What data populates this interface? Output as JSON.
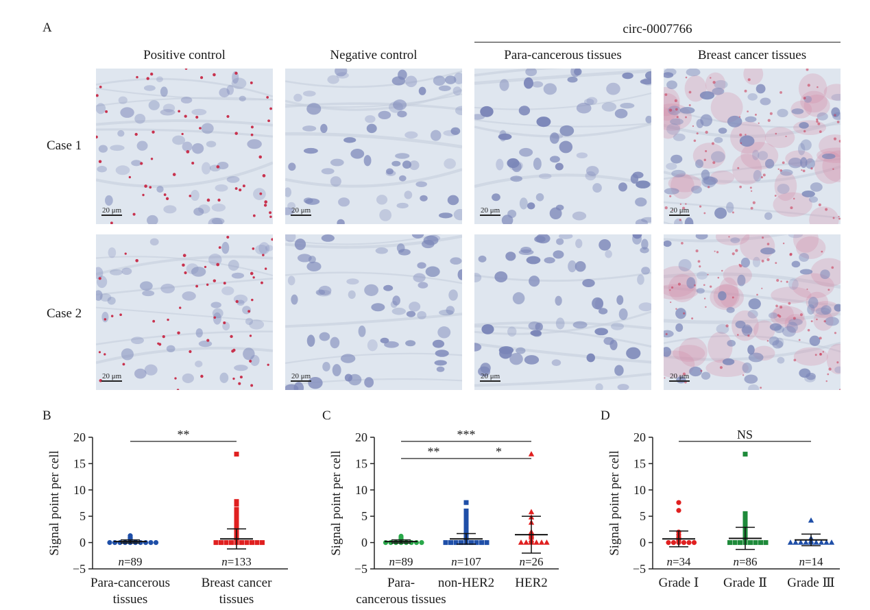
{
  "panel_a": {
    "label": "A",
    "group_label": "circ-0007766",
    "columns": [
      "Positive control",
      "Negative control",
      "Para-cancerous tissues",
      "Breast cancer tissues"
    ],
    "rows": [
      "Case 1",
      "Case 2"
    ],
    "scale_bar": "20 μm",
    "stain_colors": {
      "background": "#dfe6ef",
      "nucleus": "#7b86b8",
      "signal": "#c8324e",
      "diffuse": "#d48aa6"
    }
  },
  "chart_data": [
    {
      "panel": "B",
      "type": "scatter",
      "ylabel": "Signal point per cell",
      "ylim": [
        -5,
        20
      ],
      "yticks": [
        -5,
        0,
        5,
        10,
        15,
        20
      ],
      "categories": [
        "Para-cancerous\ntissues",
        "Breast cancer\ntissues"
      ],
      "n_labels": [
        "n=89",
        "n=133"
      ],
      "series": [
        {
          "color": "#1f4fa8",
          "marker": "circle",
          "mean": 0.2,
          "sd": 0.3,
          "values": [
            1.3,
            1.0,
            0.9,
            0.8,
            0.7,
            0.6,
            0.5,
            0.4,
            0.3,
            0.2,
            0.1,
            0.1,
            0.0,
            0.0,
            0.0,
            0.0,
            0.0,
            0.0,
            0.0,
            0.0,
            0.0,
            0.0
          ]
        },
        {
          "color": "#e02020",
          "marker": "square",
          "mean": 0.7,
          "sd": 1.9,
          "values": [
            16.8,
            7.8,
            7.3,
            6.3,
            5.8,
            5.0,
            4.6,
            4.2,
            3.8,
            3.5,
            3.1,
            2.9,
            2.6,
            2.3,
            2.1,
            1.9,
            1.7,
            1.5,
            1.3,
            1.2,
            1.0,
            0.9,
            0.8,
            0.7,
            0.6,
            0.5,
            0.4,
            0.3,
            0.2,
            0.1,
            0.0,
            0.0,
            0.0,
            0.0,
            0.0,
            0.0,
            0.0,
            0.0,
            0.0,
            0.0
          ]
        }
      ],
      "significance": [
        {
          "from": 0,
          "to": 1,
          "level": 0,
          "label": "**"
        }
      ]
    },
    {
      "panel": "C",
      "type": "scatter",
      "ylabel": "Signal point per cell",
      "ylim": [
        -5,
        20
      ],
      "yticks": [
        -5,
        0,
        5,
        10,
        15,
        20
      ],
      "categories": [
        "Para-\ncancerous tissues",
        "non-HER2",
        "HER2"
      ],
      "n_labels": [
        "n=89",
        "n=107",
        "n=26"
      ],
      "series": [
        {
          "color": "#2aa84a",
          "marker": "circle",
          "mean": 0.2,
          "sd": 0.3,
          "values": [
            1.2,
            0.9,
            0.8,
            0.7,
            0.6,
            0.5,
            0.4,
            0.3,
            0.2,
            0.1,
            0.0,
            0.0,
            0.0,
            0.0,
            0.0,
            0.0,
            0.0,
            0.0
          ]
        },
        {
          "color": "#1f4fa8",
          "marker": "square",
          "mean": 0.7,
          "sd": 1.0,
          "values": [
            7.6,
            6.0,
            5.2,
            4.6,
            4.0,
            3.5,
            3.0,
            2.7,
            2.4,
            2.1,
            1.9,
            1.7,
            1.5,
            1.3,
            1.2,
            1.0,
            0.9,
            0.8,
            0.7,
            0.6,
            0.5,
            0.4,
            0.3,
            0.2,
            0.1,
            0.0,
            0.0,
            0.0,
            0.0,
            0.0,
            0.0,
            0.0,
            0.0,
            0.0
          ]
        },
        {
          "color": "#e02020",
          "marker": "triangle",
          "mean": 1.5,
          "sd": 3.5,
          "values": [
            16.8,
            5.8,
            4.8,
            3.8,
            2.0,
            1.6,
            1.3,
            1.0,
            0.5,
            0.2,
            0.0,
            0.0,
            0.0,
            0.0,
            0.0,
            0.0
          ]
        }
      ],
      "significance": [
        {
          "from": 0,
          "to": 2,
          "level": 0,
          "label": "***"
        },
        {
          "from": 0,
          "to": 1,
          "level": 1,
          "label": "**"
        },
        {
          "from": 1,
          "to": 2,
          "level": 1,
          "label": "*"
        }
      ]
    },
    {
      "panel": "D",
      "type": "scatter",
      "ylabel": "Signal point per cell",
      "ylim": [
        -5,
        20
      ],
      "yticks": [
        -5,
        0,
        5,
        10,
        15,
        20
      ],
      "categories": [
        "Grade Ⅰ",
        "Grade Ⅱ",
        "Grade Ⅲ"
      ],
      "n_labels": [
        "n=34",
        "n=86",
        "n=14"
      ],
      "series": [
        {
          "color": "#e02020",
          "marker": "circle",
          "mean": 0.7,
          "sd": 1.5,
          "values": [
            7.6,
            6.1,
            2.0,
            1.5,
            1.0,
            0.8,
            0.6,
            0.4,
            0.2,
            0.0,
            0.0,
            0.0,
            0.0,
            0.0,
            0.0
          ]
        },
        {
          "color": "#1e8a3a",
          "marker": "square",
          "mean": 0.8,
          "sd": 2.1,
          "values": [
            16.8,
            5.5,
            5.0,
            4.4,
            3.9,
            3.4,
            3.0,
            2.6,
            2.2,
            1.9,
            1.6,
            1.4,
            1.2,
            1.0,
            0.8,
            0.6,
            0.4,
            0.2,
            0.0,
            0.0,
            0.0,
            0.0,
            0.0,
            0.0,
            0.0,
            0.0
          ]
        },
        {
          "color": "#1f4fa8",
          "marker": "triangle",
          "mean": 0.5,
          "sd": 1.1,
          "values": [
            4.2,
            0.8,
            0.3,
            0.0,
            0.0,
            0.0,
            0.0,
            0.0,
            0.0,
            0.0,
            0.0,
            0.0
          ]
        }
      ],
      "significance": [
        {
          "from": 0,
          "to": 2,
          "level": 0,
          "label": "NS"
        }
      ]
    }
  ]
}
